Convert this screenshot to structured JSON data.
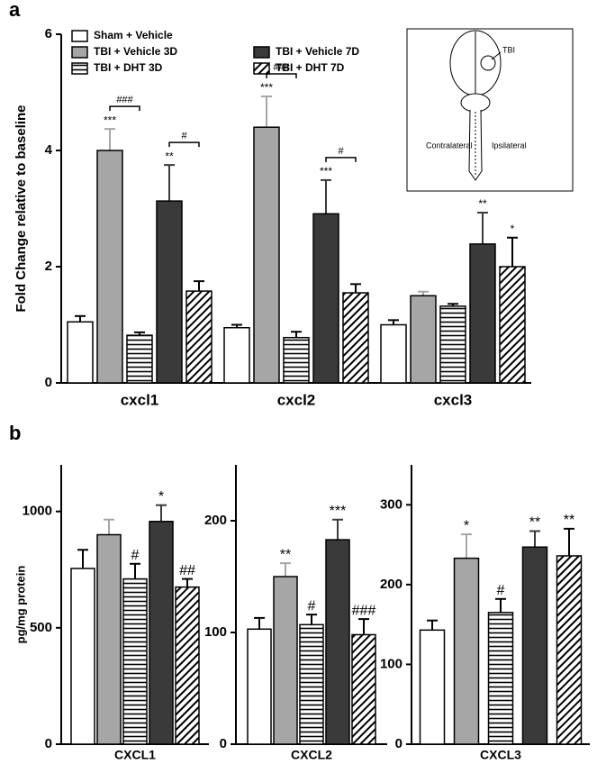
{
  "figure": {
    "panels": [
      "a",
      "b"
    ]
  },
  "inset": {
    "lesion": "TBI",
    "left": "Contralateral",
    "right": "Ipsilateral"
  },
  "chart_data": [
    {
      "type": "bar",
      "ylabel": "Fold Change relative to baseline",
      "categories": [
        "cxcl1",
        "cxcl2",
        "cxcl3"
      ],
      "ylim": [
        0,
        6
      ],
      "yticks": [
        0,
        2,
        4,
        6
      ],
      "series": [
        {
          "name": "Sham + Vehicle",
          "color": "#ffffff",
          "values": [
            1.05,
            0.95,
            1.0
          ],
          "errors": [
            0.1,
            0.05,
            0.08
          ],
          "significance": [
            null,
            null,
            null
          ]
        },
        {
          "name": "TBI + Vehicle 3D",
          "color": "#a6a6a6",
          "values": [
            4.0,
            4.4,
            1.5
          ],
          "errors": [
            0.37,
            0.53,
            0.07
          ],
          "significance": [
            "***",
            "***",
            null
          ]
        },
        {
          "name": "TBI + DHT 3D",
          "color": "#000000",
          "pattern": "horizontal",
          "values": [
            0.82,
            0.78,
            1.32
          ],
          "errors": [
            0.05,
            0.1,
            0.04
          ],
          "significance": [
            null,
            null,
            null
          ]
        },
        {
          "name": "TBI + Vehicle 7D",
          "color": "#3a3a3a",
          "values": [
            3.13,
            2.91,
            2.39
          ],
          "errors": [
            0.62,
            0.58,
            0.54
          ],
          "significance": [
            "**",
            "***",
            "**"
          ]
        },
        {
          "name": "TBI + DHT 7D",
          "color": "#000000",
          "pattern": "diagonal",
          "values": [
            1.58,
            1.55,
            2.0
          ],
          "errors": [
            0.17,
            0.15,
            0.5
          ],
          "significance": [
            null,
            null,
            "*"
          ]
        }
      ],
      "comparisons": [
        {
          "label": "###",
          "category": 0,
          "series": [
            1,
            2
          ]
        },
        {
          "label": "#",
          "category": 0,
          "series": [
            3,
            4
          ]
        },
        {
          "label": "###",
          "category": 1,
          "series": [
            1,
            2
          ]
        },
        {
          "label": "#",
          "category": 1,
          "series": [
            3,
            4
          ]
        }
      ]
    },
    {
      "type": "bar",
      "ylabel": "pg/mg protein",
      "xlabel": "CXCL1",
      "categories": [
        null
      ],
      "ylim": [
        0,
        1200
      ],
      "yticks": [
        0,
        500,
        1000
      ],
      "series": [
        {
          "color": "#ffffff",
          "values": [
            755
          ],
          "errors": [
            80
          ],
          "significance": [
            null
          ]
        },
        {
          "color": "#a6a6a6",
          "values": [
            900
          ],
          "errors": [
            65
          ],
          "significance": [
            null
          ]
        },
        {
          "color": "#000000",
          "pattern": "horizontal",
          "values": [
            710
          ],
          "errors": [
            65
          ],
          "significance": [
            "#"
          ]
        },
        {
          "color": "#3a3a3a",
          "values": [
            957
          ],
          "errors": [
            70
          ],
          "significance": [
            "*"
          ]
        },
        {
          "color": "#000000",
          "pattern": "diagonal",
          "values": [
            675
          ],
          "errors": [
            35
          ],
          "significance": [
            "##"
          ]
        }
      ]
    },
    {
      "type": "bar",
      "xlabel": "CXCL2",
      "categories": [
        null
      ],
      "ylim": [
        0,
        250
      ],
      "yticks": [
        0,
        100,
        200
      ],
      "series": [
        {
          "color": "#ffffff",
          "values": [
            103
          ],
          "errors": [
            10
          ],
          "significance": [
            null
          ]
        },
        {
          "color": "#a6a6a6",
          "values": [
            150
          ],
          "errors": [
            12
          ],
          "significance": [
            "**"
          ]
        },
        {
          "color": "#000000",
          "pattern": "horizontal",
          "values": [
            107
          ],
          "errors": [
            9
          ],
          "significance": [
            "#"
          ]
        },
        {
          "color": "#3a3a3a",
          "values": [
            183
          ],
          "errors": [
            18
          ],
          "significance": [
            "***"
          ]
        },
        {
          "color": "#000000",
          "pattern": "diagonal",
          "values": [
            98
          ],
          "errors": [
            14
          ],
          "significance": [
            "###"
          ]
        }
      ]
    },
    {
      "type": "bar",
      "xlabel": "CXCL3",
      "categories": [
        null
      ],
      "ylim": [
        0,
        350
      ],
      "yticks": [
        0,
        100,
        200,
        300
      ],
      "series": [
        {
          "color": "#ffffff",
          "values": [
            143
          ],
          "errors": [
            12
          ],
          "significance": [
            null
          ]
        },
        {
          "color": "#a6a6a6",
          "values": [
            233
          ],
          "errors": [
            30
          ],
          "significance": [
            "*"
          ]
        },
        {
          "color": "#000000",
          "pattern": "horizontal",
          "values": [
            165
          ],
          "errors": [
            17
          ],
          "significance": [
            "#"
          ]
        },
        {
          "color": "#3a3a3a",
          "values": [
            247
          ],
          "errors": [
            20
          ],
          "significance": [
            "**"
          ]
        },
        {
          "color": "#000000",
          "pattern": "diagonal",
          "values": [
            236
          ],
          "errors": [
            34
          ],
          "significance": [
            "**"
          ]
        }
      ]
    }
  ]
}
